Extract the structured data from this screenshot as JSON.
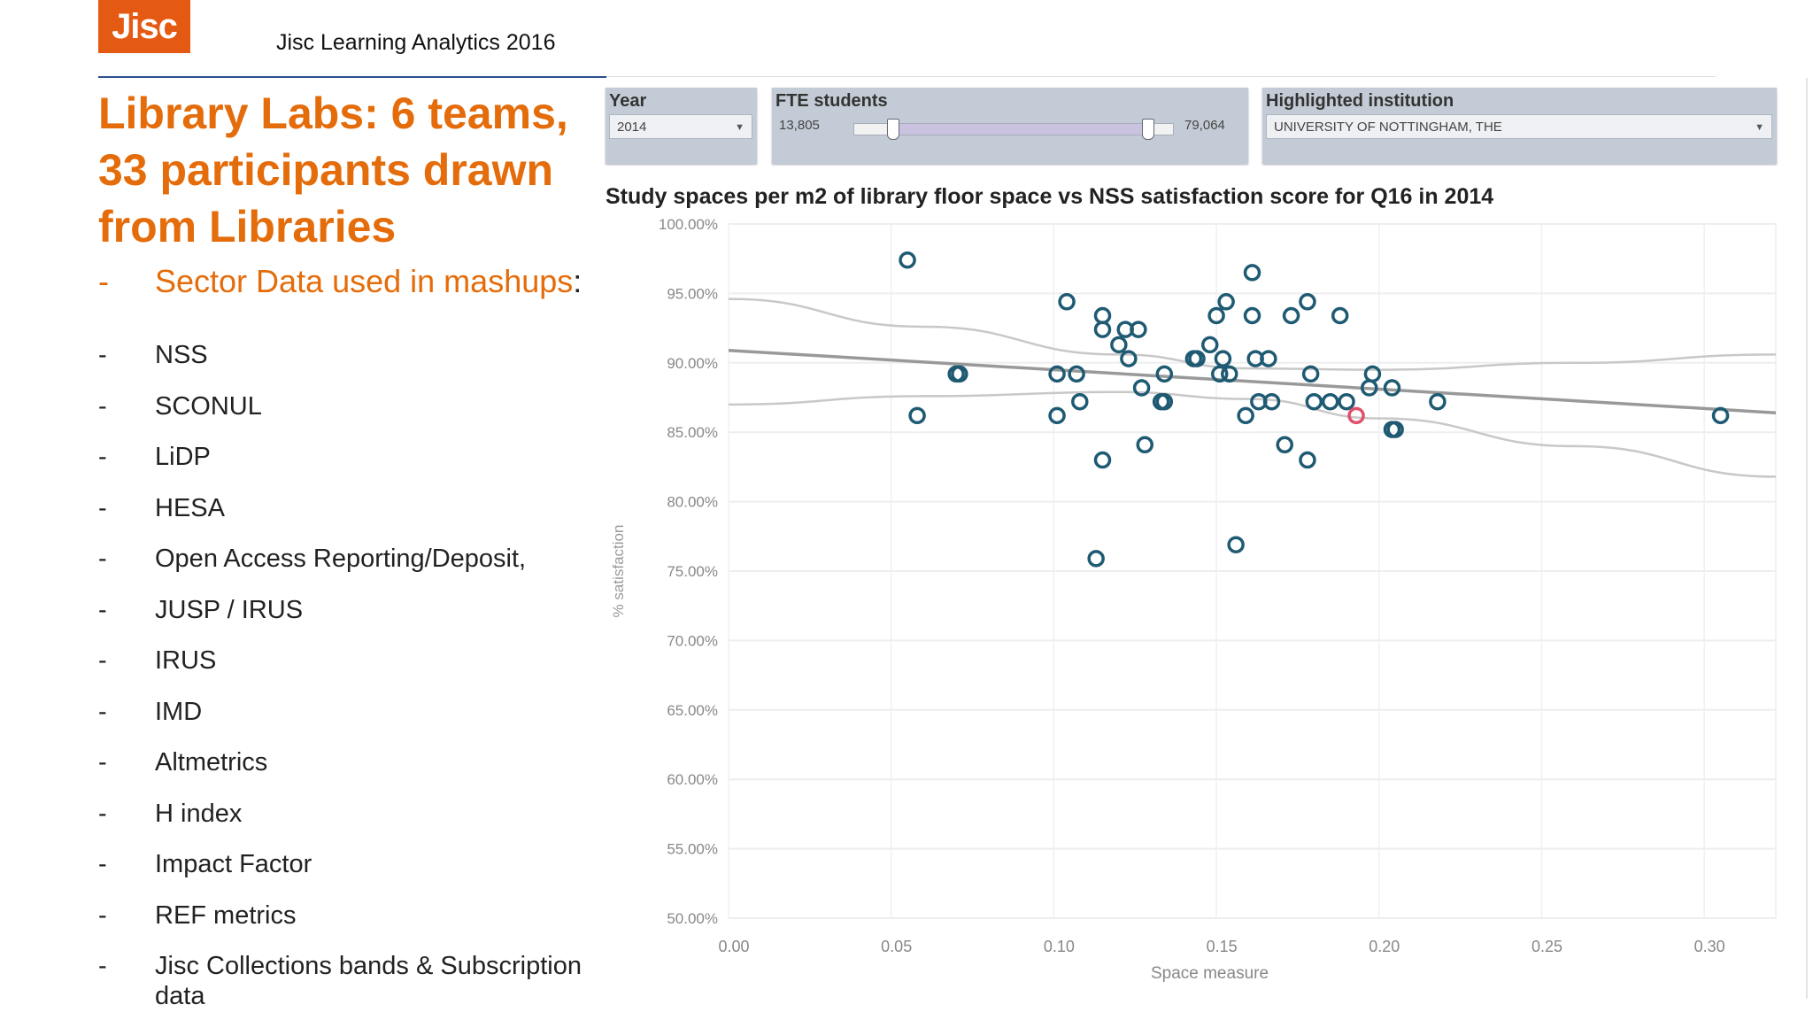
{
  "header": {
    "logo_text": "Jisc",
    "event": "Jisc Learning Analytics 2016"
  },
  "slide": {
    "title": "Library Labs: 6 teams, 33 participants drawn from Libraries",
    "lead_bullet": "Sector Data used in mashups",
    "lead_colon": ":",
    "dash": "-",
    "bullets": [
      "NSS",
      "SCONUL",
      "LiDP",
      "HESA",
      "Open Access Reporting/Deposit,",
      "JUSP / IRUS",
      "IRUS",
      "IMD",
      "Altmetrics",
      "H index",
      "Impact Factor",
      "REF metrics",
      "Jisc Collections bands & Subscription data"
    ]
  },
  "filters": {
    "year": {
      "label": "Year",
      "value": "2014"
    },
    "fte": {
      "label": "FTE students",
      "min": "13,805",
      "max": "79,064",
      "low_fraction": 0.12,
      "high_fraction": 0.92
    },
    "institution": {
      "label": "Highlighted institution",
      "value": "UNIVERSITY OF NOTTINGHAM, THE"
    }
  },
  "colors": {
    "accent": "#e46c0a",
    "point": "#1f5a73",
    "highlight": "#e0506a"
  },
  "chart_data": {
    "type": "scatter",
    "title": "Study spaces per m2 of library floor space vs NSS satisfaction score for Q16 in 2014",
    "xlabel": "Space measure",
    "ylabel": "% satisfaction",
    "xlim": [
      0,
      0.322
    ],
    "ylim": [
      50,
      100
    ],
    "xticks": [
      "0.00",
      "0.05",
      "0.10",
      "0.15",
      "0.20",
      "0.25",
      "0.30"
    ],
    "yticks": [
      "100.00%",
      "95.00%",
      "90.00%",
      "85.00%",
      "80.00%",
      "75.00%",
      "70.00%",
      "65.00%",
      "60.00%",
      "55.00%",
      "50.00%"
    ],
    "grid": true,
    "points": [
      [
        0.055,
        97.4
      ],
      [
        0.058,
        86.2
      ],
      [
        0.07,
        89.2
      ],
      [
        0.071,
        89.2
      ],
      [
        0.104,
        94.4
      ],
      [
        0.115,
        93.4
      ],
      [
        0.115,
        92.4
      ],
      [
        0.12,
        91.3
      ],
      [
        0.122,
        92.4
      ],
      [
        0.126,
        92.4
      ],
      [
        0.123,
        90.3
      ],
      [
        0.101,
        89.2
      ],
      [
        0.107,
        89.2
      ],
      [
        0.101,
        86.2
      ],
      [
        0.108,
        87.2
      ],
      [
        0.115,
        83.0
      ],
      [
        0.113,
        75.9
      ],
      [
        0.127,
        88.2
      ],
      [
        0.133,
        87.2
      ],
      [
        0.134,
        87.2
      ],
      [
        0.134,
        89.2
      ],
      [
        0.128,
        84.1
      ],
      [
        0.143,
        90.3
      ],
      [
        0.144,
        90.3
      ],
      [
        0.148,
        91.3
      ],
      [
        0.152,
        90.3
      ],
      [
        0.151,
        89.2
      ],
      [
        0.154,
        89.2
      ],
      [
        0.15,
        93.4
      ],
      [
        0.153,
        94.4
      ],
      [
        0.161,
        96.5
      ],
      [
        0.161,
        93.4
      ],
      [
        0.162,
        90.3
      ],
      [
        0.166,
        90.3
      ],
      [
        0.159,
        86.2
      ],
      [
        0.163,
        87.2
      ],
      [
        0.167,
        87.2
      ],
      [
        0.156,
        76.9
      ],
      [
        0.173,
        93.4
      ],
      [
        0.178,
        94.4
      ],
      [
        0.179,
        89.2
      ],
      [
        0.171,
        84.1
      ],
      [
        0.178,
        83.0
      ],
      [
        0.18,
        87.2
      ],
      [
        0.185,
        87.2
      ],
      [
        0.19,
        87.2
      ],
      [
        0.188,
        93.4
      ],
      [
        0.198,
        89.2
      ],
      [
        0.197,
        88.2
      ],
      [
        0.204,
        88.2
      ],
      [
        0.204,
        85.2
      ],
      [
        0.205,
        85.2
      ],
      [
        0.218,
        87.2
      ],
      [
        0.305,
        86.2
      ]
    ],
    "highlighted_point": [
      0.193,
      86.2
    ],
    "trend_line": [
      [
        0,
        90.9
      ],
      [
        0.322,
        86.4
      ]
    ],
    "confidence_upper": [
      [
        0,
        94.6
      ],
      [
        0.06,
        92.6
      ],
      [
        0.12,
        90.6
      ],
      [
        0.16,
        89.6
      ],
      [
        0.2,
        89.5
      ],
      [
        0.26,
        90.0
      ],
      [
        0.322,
        90.6
      ]
    ],
    "confidence_lower": [
      [
        0,
        87.0
      ],
      [
        0.06,
        87.6
      ],
      [
        0.12,
        87.9
      ],
      [
        0.16,
        87.4
      ],
      [
        0.2,
        86.0
      ],
      [
        0.26,
        84.0
      ],
      [
        0.322,
        81.8
      ]
    ]
  }
}
